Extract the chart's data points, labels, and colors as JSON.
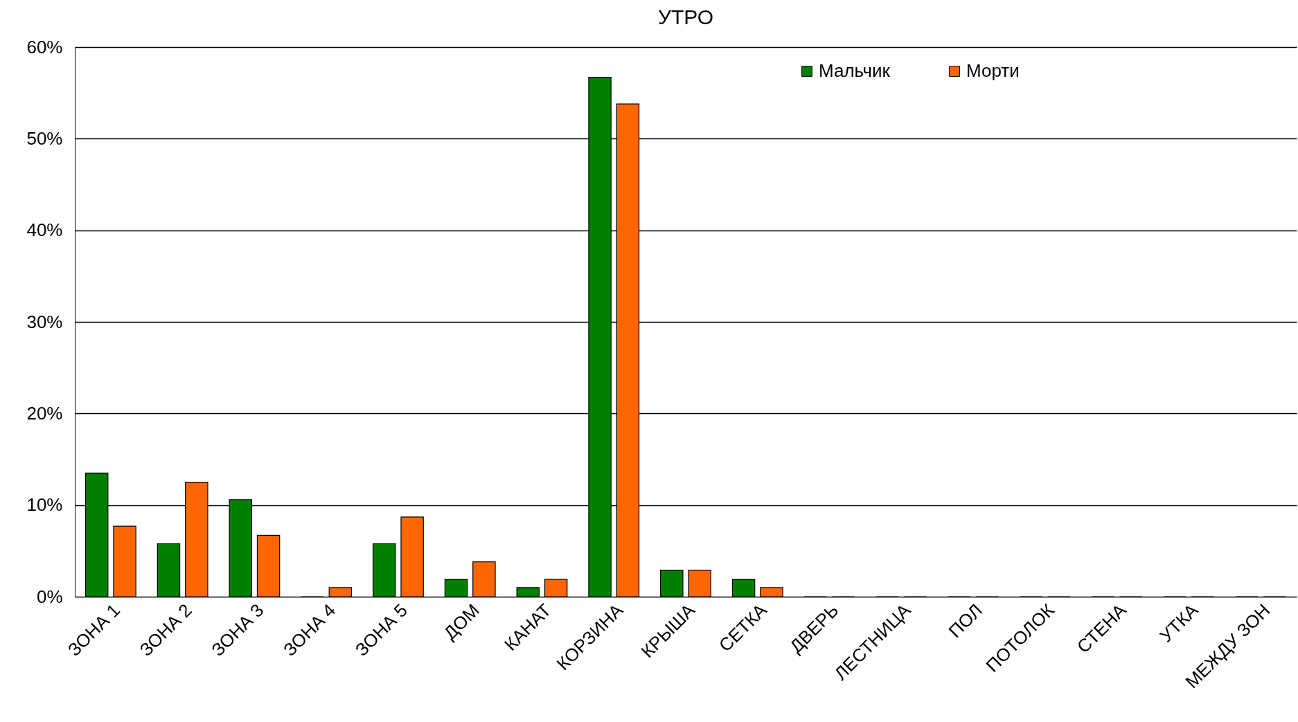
{
  "chart_data": {
    "type": "bar",
    "title": "УТРО",
    "categories": [
      "ЗОНА 1",
      "ЗОНА 2",
      "ЗОНА 3",
      "ЗОНА 4",
      "ЗОНА 5",
      "ДОМ",
      "КАНАТ",
      "КОРЗИНА",
      "КРЫША",
      "СЕТКА",
      "ДВЕРЬ",
      "ЛЕСТНИЦА",
      "ПОЛ",
      "ПОТОЛОК",
      "СТЕНА",
      "УТКА",
      "МЕЖДУ ЗОН"
    ],
    "series": [
      {
        "name": "Мальчик",
        "color": "#008000",
        "values": [
          13.5,
          5.8,
          10.6,
          0,
          5.8,
          1.9,
          1.0,
          56.7,
          2.9,
          1.9,
          0,
          0,
          0,
          0,
          0,
          0,
          0
        ]
      },
      {
        "name": "Морти",
        "color": "#ff6600",
        "values": [
          7.7,
          12.5,
          6.7,
          1.0,
          8.7,
          3.8,
          1.9,
          53.8,
          2.9,
          1.0,
          0,
          0,
          0,
          0,
          0,
          0,
          0
        ]
      }
    ],
    "ylim": [
      0,
      60
    ],
    "yticks": [
      {
        "value": 0,
        "label": "0%"
      },
      {
        "value": 10,
        "label": "10%"
      },
      {
        "value": 20,
        "label": "20%"
      },
      {
        "value": 30,
        "label": "30%"
      },
      {
        "value": 40,
        "label": "40%"
      },
      {
        "value": 50,
        "label": "50%"
      },
      {
        "value": 60,
        "label": "60%"
      }
    ],
    "grid": "y",
    "legend": "top right"
  }
}
